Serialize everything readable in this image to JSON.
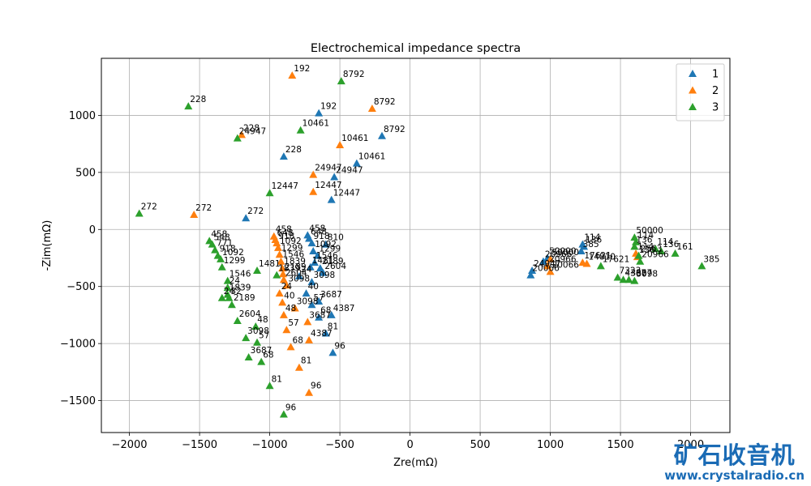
{
  "chart_data": {
    "type": "scatter",
    "title": "Electrochemical impedance spectra",
    "xlabel": "Zre(mΩ)",
    "ylabel": "-Zim(mΩ)",
    "xlim": [
      -2200,
      2280
    ],
    "ylim": [
      -1780,
      1500
    ],
    "xticks": [
      -2000,
      -1500,
      -1000,
      -500,
      0,
      500,
      1000,
      1500,
      2000
    ],
    "yticks": [
      -1500,
      -1000,
      -500,
      0,
      500,
      1000
    ],
    "xtick_labels": [
      "−2000",
      "−1500",
      "−1000",
      "−500",
      "0",
      "500",
      "1000",
      "1500",
      "2000"
    ],
    "ytick_labels": [
      "−1500",
      "−1000",
      "−500",
      "0",
      "500",
      "1000"
    ],
    "grid": true,
    "legend_position": "top-right",
    "marker": "triangle",
    "series": [
      {
        "name": "1",
        "color": "#1f77b4",
        "points": [
          {
            "x": -650,
            "y": 1020,
            "label": "192"
          },
          {
            "x": -200,
            "y": 820,
            "label": "8792"
          },
          {
            "x": -380,
            "y": 580,
            "label": "10461"
          },
          {
            "x": -900,
            "y": 640,
            "label": "228"
          },
          {
            "x": -540,
            "y": 460,
            "label": "24947"
          },
          {
            "x": -560,
            "y": 260,
            "label": "12447"
          },
          {
            "x": -1170,
            "y": 100,
            "label": "272"
          },
          {
            "x": -730,
            "y": -50,
            "label": "458"
          },
          {
            "x": -720,
            "y": -80,
            "label": "648"
          },
          {
            "x": -700,
            "y": -120,
            "label": "918"
          },
          {
            "x": -600,
            "y": -130,
            "label": "810"
          },
          {
            "x": -690,
            "y": -190,
            "label": "1092"
          },
          {
            "x": -660,
            "y": -230,
            "label": "1299"
          },
          {
            "x": -680,
            "y": -290,
            "label": "1546"
          },
          {
            "x": -710,
            "y": -330,
            "label": "1481"
          },
          {
            "x": -640,
            "y": -340,
            "label": "2189"
          },
          {
            "x": -620,
            "y": -380,
            "label": "2604"
          },
          {
            "x": -790,
            "y": -410,
            "label": "24"
          },
          {
            "x": -700,
            "y": -460,
            "label": "3098"
          },
          {
            "x": -740,
            "y": -560,
            "label": "40"
          },
          {
            "x": -650,
            "y": -630,
            "label": "3687"
          },
          {
            "x": -700,
            "y": -660,
            "label": "57"
          },
          {
            "x": -560,
            "y": -750,
            "label": "4387"
          },
          {
            "x": -650,
            "y": -770,
            "label": "68"
          },
          {
            "x": -600,
            "y": -910,
            "label": "81"
          },
          {
            "x": -550,
            "y": -1080,
            "label": "96"
          },
          {
            "x": 1230,
            "y": -130,
            "label": "114"
          },
          {
            "x": 1240,
            "y": -150,
            "label": "136"
          },
          {
            "x": 1220,
            "y": -190,
            "label": "385"
          },
          {
            "x": 980,
            "y": -250,
            "label": "50000"
          },
          {
            "x": 950,
            "y": -280,
            "label": "20966"
          },
          {
            "x": 870,
            "y": -360,
            "label": "24947"
          },
          {
            "x": 860,
            "y": -400,
            "label": "20066"
          }
        ]
      },
      {
        "name": "2",
        "color": "#ff7f0e",
        "points": [
          {
            "x": -840,
            "y": 1350,
            "label": "192"
          },
          {
            "x": -270,
            "y": 1060,
            "label": "8792"
          },
          {
            "x": -500,
            "y": 740,
            "label": "10461"
          },
          {
            "x": -1200,
            "y": 830,
            "label": "228"
          },
          {
            "x": -690,
            "y": 480,
            "label": "24947"
          },
          {
            "x": -690,
            "y": 330,
            "label": "12447"
          },
          {
            "x": -1540,
            "y": 130,
            "label": "272"
          },
          {
            "x": -970,
            "y": -60,
            "label": "458"
          },
          {
            "x": -960,
            "y": -90,
            "label": "648"
          },
          {
            "x": -950,
            "y": -120,
            "label": "918"
          },
          {
            "x": -940,
            "y": -160,
            "label": "1092"
          },
          {
            "x": -930,
            "y": -220,
            "label": "1299"
          },
          {
            "x": -920,
            "y": -280,
            "label": "1546"
          },
          {
            "x": -910,
            "y": -340,
            "label": "1839"
          },
          {
            "x": -905,
            "y": -390,
            "label": "2189"
          },
          {
            "x": -900,
            "y": -440,
            "label": "2604"
          },
          {
            "x": -880,
            "y": -490,
            "label": "3098"
          },
          {
            "x": -930,
            "y": -560,
            "label": "24"
          },
          {
            "x": -910,
            "y": -640,
            "label": "40"
          },
          {
            "x": -820,
            "y": -690,
            "label": "3098"
          },
          {
            "x": -900,
            "y": -750,
            "label": "48"
          },
          {
            "x": -730,
            "y": -810,
            "label": "3687"
          },
          {
            "x": -880,
            "y": -880,
            "label": "57"
          },
          {
            "x": -720,
            "y": -970,
            "label": "4387"
          },
          {
            "x": -850,
            "y": -1030,
            "label": "68"
          },
          {
            "x": -790,
            "y": -1210,
            "label": "81"
          },
          {
            "x": -720,
            "y": -1430,
            "label": "96"
          },
          {
            "x": 1610,
            "y": -210,
            "label": "114"
          },
          {
            "x": 1620,
            "y": -240,
            "label": "136"
          },
          {
            "x": 1000,
            "y": -260,
            "label": "50000"
          },
          {
            "x": 980,
            "y": -320,
            "label": "20966"
          },
          {
            "x": 1000,
            "y": -370,
            "label": "20066"
          },
          {
            "x": 1230,
            "y": -290,
            "label": "17621"
          },
          {
            "x": 1260,
            "y": -300,
            "label": "14810"
          }
        ]
      },
      {
        "name": "3",
        "color": "#2ca02c",
        "points": [
          {
            "x": -490,
            "y": 1300,
            "label": "8792"
          },
          {
            "x": -1580,
            "y": 1080,
            "label": "228"
          },
          {
            "x": -1230,
            "y": 800,
            "label": "24947"
          },
          {
            "x": -780,
            "y": 870,
            "label": "10461"
          },
          {
            "x": -1000,
            "y": 320,
            "label": "12447"
          },
          {
            "x": -1930,
            "y": 140,
            "label": "272"
          },
          {
            "x": -1430,
            "y": -100,
            "label": "458"
          },
          {
            "x": -1410,
            "y": -130,
            "label": "548"
          },
          {
            "x": -1390,
            "y": -180,
            "label": "771"
          },
          {
            "x": -1370,
            "y": -230,
            "label": "918"
          },
          {
            "x": -1350,
            "y": -260,
            "label": "1092"
          },
          {
            "x": -1340,
            "y": -330,
            "label": "1299"
          },
          {
            "x": -1300,
            "y": -450,
            "label": "1546"
          },
          {
            "x": -1090,
            "y": -360,
            "label": "1481"
          },
          {
            "x": -950,
            "y": -400,
            "label": "1839"
          },
          {
            "x": -1340,
            "y": -600,
            "label": "24"
          },
          {
            "x": -1300,
            "y": -570,
            "label": "1839"
          },
          {
            "x": -1270,
            "y": -660,
            "label": "2189"
          },
          {
            "x": -1230,
            "y": -800,
            "label": "2604"
          },
          {
            "x": -1300,
            "y": -510,
            "label": "24"
          },
          {
            "x": -1290,
            "y": -600,
            "label": "32"
          },
          {
            "x": -1100,
            "y": -850,
            "label": "48"
          },
          {
            "x": -1170,
            "y": -950,
            "label": "3098"
          },
          {
            "x": -1090,
            "y": -990,
            "label": "57"
          },
          {
            "x": -1150,
            "y": -1120,
            "label": "3687"
          },
          {
            "x": -1060,
            "y": -1160,
            "label": "68"
          },
          {
            "x": -1000,
            "y": -1370,
            "label": "81"
          },
          {
            "x": -900,
            "y": -1620,
            "label": "96"
          },
          {
            "x": 1600,
            "y": -70,
            "label": "50000"
          },
          {
            "x": 1610,
            "y": -110,
            "label": "114"
          },
          {
            "x": 1600,
            "y": -150,
            "label": "136"
          },
          {
            "x": 1750,
            "y": -170,
            "label": "114"
          },
          {
            "x": 1790,
            "y": -190,
            "label": "136"
          },
          {
            "x": 1890,
            "y": -210,
            "label": "161"
          },
          {
            "x": 2080,
            "y": -320,
            "label": "385"
          },
          {
            "x": 1630,
            "y": -230,
            "label": "2563"
          },
          {
            "x": 1640,
            "y": -280,
            "label": "20966"
          },
          {
            "x": 1360,
            "y": -320,
            "label": "17621"
          },
          {
            "x": 1480,
            "y": -420,
            "label": "7323"
          },
          {
            "x": 1520,
            "y": -440,
            "label": "4387"
          },
          {
            "x": 1560,
            "y": -440,
            "label": "3687"
          },
          {
            "x": 1600,
            "y": -450,
            "label": "3098"
          }
        ]
      }
    ]
  },
  "watermark": {
    "title": "矿石收音机",
    "url": "www.crystalradio.cn"
  }
}
